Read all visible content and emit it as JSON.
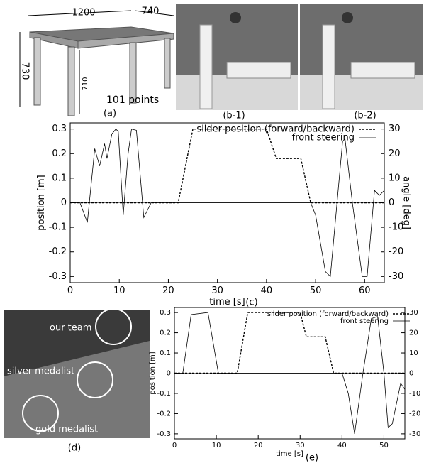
{
  "figure": {
    "table_width": "1200",
    "table_depth": "740",
    "table_height": "730",
    "leg_height": "710",
    "points_note": "101 points",
    "caption_a": "(a)",
    "caption_b1": "(b-1)",
    "caption_b2": "(b-2)",
    "caption_c": "(c)",
    "caption_d": "(d)",
    "caption_e": "(e)",
    "label_our_team": "our team",
    "label_silver": "silver medalist",
    "label_gold": "gold medalist"
  },
  "chart_data": [
    {
      "type": "line",
      "xlabel": "time [s]",
      "ylabel": "position [m]",
      "y2label": "angle [deg]",
      "xlim": [
        0,
        64
      ],
      "xticks": [
        0,
        10,
        20,
        30,
        40,
        50,
        60
      ],
      "ylim": [
        -0.325,
        0.325
      ],
      "yticks": [
        -0.3,
        -0.2,
        -0.1,
        0,
        0.1,
        0.2,
        0.3
      ],
      "y2lim": [
        -32.5,
        32.5
      ],
      "y2ticks": [
        -30,
        -20,
        -10,
        0,
        10,
        20,
        30
      ],
      "legend": "upper right",
      "series": [
        {
          "name": "slider position (forward/backward)",
          "color": "#000",
          "style": "dotted",
          "x": [
            0,
            22,
            25,
            40,
            42,
            47,
            49,
            64
          ],
          "values": [
            0,
            0,
            0.3,
            0.3,
            0.18,
            0.18,
            0,
            0
          ]
        },
        {
          "name": "front steering",
          "color": "#000",
          "style": "solid",
          "axis": "y2",
          "x": [
            0,
            2,
            3.5,
            5,
            6,
            7,
            7.5,
            8.5,
            9.3,
            9.8,
            10.8,
            11.8,
            12.5,
            13.5,
            15,
            16.5,
            49,
            50,
            52,
            53,
            55.5,
            56,
            57.5,
            59.5,
            60.5,
            62,
            63,
            64
          ],
          "values": [
            0,
            0,
            -8,
            22,
            15,
            24,
            18,
            28,
            30,
            29,
            -5,
            20,
            30,
            29.5,
            -6,
            0,
            0,
            -5,
            -28,
            -30,
            25,
            26,
            0,
            -30,
            -30,
            5,
            3,
            5
          ]
        }
      ]
    },
    {
      "type": "line",
      "xlabel": "time [s]",
      "ylabel": "position [m]",
      "xlim": [
        0,
        55
      ],
      "xticks": [
        0,
        10,
        20,
        30,
        40,
        50
      ],
      "ylim": [
        -0.325,
        0.325
      ],
      "yticks": [
        -0.3,
        -0.2,
        -0.1,
        0,
        0.1,
        0.2,
        0.3
      ],
      "y2lim": [
        -32.5,
        32.5
      ],
      "y2ticks": [
        -30,
        -20,
        -10,
        0,
        10,
        20,
        30
      ],
      "legend": "upper right",
      "series": [
        {
          "name": "slider position (forward/backward)",
          "color": "#000",
          "style": "dotted",
          "x": [
            0,
            15,
            17.5,
            30,
            31.5,
            36,
            38,
            55
          ],
          "values": [
            0,
            0,
            0.3,
            0.3,
            0.18,
            0.18,
            0,
            0
          ]
        },
        {
          "name": "front steering",
          "color": "#000",
          "style": "solid",
          "axis": "y2",
          "x": [
            0,
            2,
            4,
            8,
            10.5,
            40,
            41.5,
            43,
            45,
            47,
            48.5,
            50,
            51,
            52,
            54,
            55
          ],
          "values": [
            0,
            0,
            29,
            30,
            0,
            0,
            -10,
            -30,
            0,
            27,
            28,
            0,
            -27,
            -25,
            -5,
            -8
          ]
        }
      ]
    }
  ]
}
